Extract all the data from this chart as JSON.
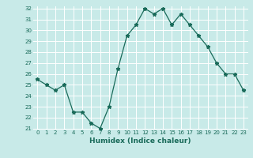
{
  "x": [
    0,
    1,
    2,
    3,
    4,
    5,
    6,
    7,
    8,
    9,
    10,
    11,
    12,
    13,
    14,
    15,
    16,
    17,
    18,
    19,
    20,
    21,
    22,
    23
  ],
  "y": [
    25.5,
    25.0,
    24.5,
    25.0,
    22.5,
    22.5,
    21.5,
    21.0,
    23.0,
    26.5,
    29.5,
    30.5,
    32.0,
    31.5,
    32.0,
    30.5,
    31.5,
    30.5,
    29.5,
    28.5,
    27.0,
    26.0,
    26.0,
    24.5
  ],
  "xlabel": "Humidex (Indice chaleur)",
  "ylim": [
    21,
    32
  ],
  "xlim": [
    -0.5,
    23.5
  ],
  "yticks": [
    21,
    22,
    23,
    24,
    25,
    26,
    27,
    28,
    29,
    30,
    31,
    32
  ],
  "xticks": [
    0,
    1,
    2,
    3,
    4,
    5,
    6,
    7,
    8,
    9,
    10,
    11,
    12,
    13,
    14,
    15,
    16,
    17,
    18,
    19,
    20,
    21,
    22,
    23
  ],
  "line_color": "#1a6b5a",
  "marker": "*",
  "bg_color": "#c8eae8",
  "grid_color": "#ffffff",
  "font_color": "#1a6b5a"
}
